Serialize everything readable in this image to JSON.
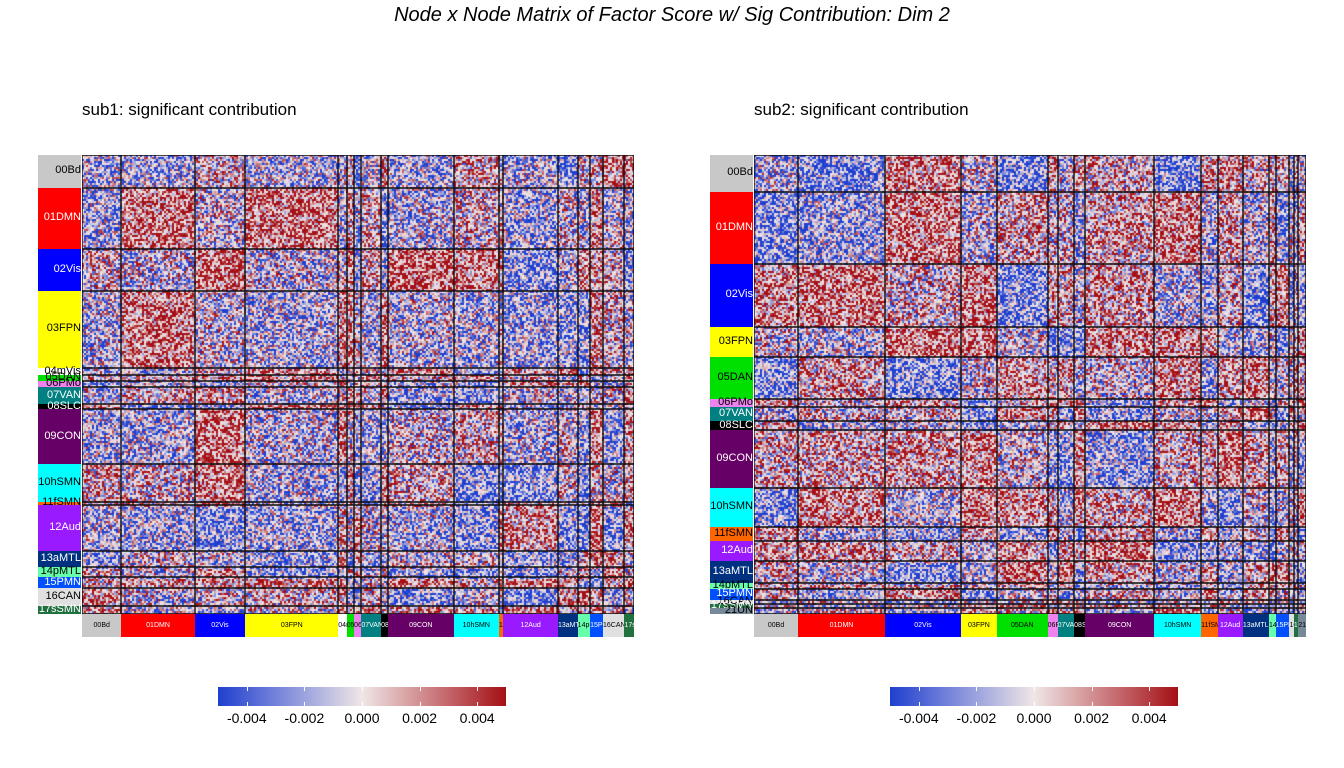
{
  "title": "Node x Node Matrix of Factor Score w/ Sig Contribution: Dim 2",
  "colorbar": {
    "ticks": [
      -0.004,
      -0.002,
      0.0,
      0.002,
      0.004
    ],
    "tick_labels": [
      "-0.004",
      "-0.002",
      "0.000",
      "0.002",
      "0.004"
    ],
    "range": [
      -0.005,
      0.005
    ],
    "colors": {
      "low": "#1f3fd0",
      "mid": "#f0e6e6",
      "high": "#a50f15"
    }
  },
  "chart_data": [
    {
      "type": "heatmap",
      "title": "sub1: significant contribution",
      "value_range": [
        -0.005,
        0.005
      ],
      "networks": [
        {
          "name": "00Bd",
          "color": "#c8c8c8",
          "share": 0.07
        },
        {
          "name": "01DMN",
          "color": "#ff0000",
          "share": 0.13
        },
        {
          "name": "02Vis",
          "color": "#0000ff",
          "share": 0.09
        },
        {
          "name": "03FPN",
          "color": "#ffff00",
          "share": 0.165
        },
        {
          "name": "04mVis",
          "color": "#ffffff",
          "share": 0.015
        },
        {
          "name": "05DAN",
          "color": "#00e000",
          "share": 0.013
        },
        {
          "name": "06PMo",
          "color": "#ee82ee",
          "share": 0.013
        },
        {
          "name": "07VAN",
          "color": "#008080",
          "share": 0.035
        },
        {
          "name": "08SLC",
          "color": "#000000",
          "share": 0.012
        },
        {
          "name": "09CON",
          "color": "#660066",
          "share": 0.117
        },
        {
          "name": "10hSMN",
          "color": "#00ffff",
          "share": 0.08
        },
        {
          "name": "11fSMN",
          "color": "#ff6600",
          "share": 0.008
        },
        {
          "name": "12Aud",
          "color": "#9a1aff",
          "share": 0.097
        },
        {
          "name": "13aMTL",
          "color": "#003080",
          "share": 0.035
        },
        {
          "name": "14pMTL",
          "color": "#66ffaa",
          "share": 0.022
        },
        {
          "name": "15PMN",
          "color": "#0050ff",
          "share": 0.023
        },
        {
          "name": "16CAN",
          "color": "#e0e0e0",
          "share": 0.038
        },
        {
          "name": "17sSMN",
          "color": "#207040",
          "share": 0.017
        }
      ]
    },
    {
      "type": "heatmap",
      "title": "sub2: significant contribution",
      "value_range": [
        -0.005,
        0.005
      ],
      "networks": [
        {
          "name": "00Bd",
          "color": "#c8c8c8",
          "share": 0.08
        },
        {
          "name": "01DMN",
          "color": "#ff0000",
          "share": 0.157
        },
        {
          "name": "02Vis",
          "color": "#0000ff",
          "share": 0.138
        },
        {
          "name": "03FPN",
          "color": "#ffff00",
          "share": 0.065
        },
        {
          "name": "05DAN",
          "color": "#00e000",
          "share": 0.092
        },
        {
          "name": "06PMo",
          "color": "#ee82ee",
          "share": 0.018
        },
        {
          "name": "07VAN",
          "color": "#008080",
          "share": 0.03
        },
        {
          "name": "08SLC",
          "color": "#000000",
          "share": 0.02
        },
        {
          "name": "09CON",
          "color": "#660066",
          "share": 0.125
        },
        {
          "name": "10hSMN",
          "color": "#00ffff",
          "share": 0.085
        },
        {
          "name": "11fSMN",
          "color": "#ff6600",
          "share": 0.03
        },
        {
          "name": "12Aud",
          "color": "#9a1aff",
          "share": 0.045
        },
        {
          "name": "13aMTL",
          "color": "#003080",
          "share": 0.048
        },
        {
          "name": "14pMTL",
          "color": "#66ffaa",
          "share": 0.012
        },
        {
          "name": "15PMN",
          "color": "#0050ff",
          "share": 0.025
        },
        {
          "name": "16CAN",
          "color": "#e0e0e0",
          "share": 0.008
        },
        {
          "name": "17sSMN",
          "color": "#207040",
          "share": 0.008
        },
        {
          "name": "21UN",
          "color": "#778899",
          "share": 0.014
        }
      ]
    }
  ]
}
